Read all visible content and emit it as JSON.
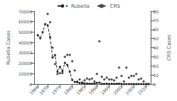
{
  "chart_data": {
    "type": "line",
    "series": [
      {
        "name": "Rubella",
        "type": "line",
        "axis": "y",
        "color": "#222222",
        "marker": "circle",
        "line_style": "dashed",
        "x": [
          1966,
          1967,
          1968,
          1969,
          1970,
          1971,
          1972,
          1973,
          1974,
          1975,
          1976,
          1977,
          1978,
          1979,
          1980,
          1981,
          1982,
          1983,
          1984,
          1985,
          1986,
          1987,
          1988,
          1989,
          1990,
          1991,
          1992,
          1993,
          1994,
          1995,
          1996,
          1997,
          1998,
          1999,
          2000,
          2001,
          2002,
          2003,
          2004,
          2005,
          2006,
          2007,
          2008,
          2009,
          2010,
          2011
        ],
        "values": [
          46975,
          44000,
          50000,
          57686,
          56552,
          45086,
          25507,
          27804,
          11917,
          16652,
          12491,
          20395,
          18269,
          11795,
          3904,
          2077,
          2325,
          970,
          745,
          630,
          551,
          306,
          225,
          396,
          1125,
          1401,
          160,
          192,
          227,
          128,
          238,
          181,
          345,
          267,
          176,
          23,
          18,
          7,
          10,
          11,
          11,
          12,
          16,
          3,
          5,
          4
        ]
      },
      {
        "name": "CRS",
        "type": "scatter",
        "axis": "y2",
        "color": "#222222",
        "marker": "diamond",
        "x": [
          1970,
          1971,
          1972,
          1973,
          1974,
          1975,
          1976,
          1977,
          1978,
          1979,
          1980,
          1981,
          1982,
          1983,
          1984,
          1985,
          1986,
          1987,
          1988,
          1989,
          1990,
          1991,
          1992,
          1993,
          1994,
          1995,
          1996,
          1997,
          1998,
          1999,
          2000,
          2001,
          2002,
          2003,
          2004,
          2005,
          2006,
          2007,
          2008,
          2009,
          2010,
          2011
        ],
        "values": [
          77,
          68,
          40,
          22,
          11,
          12,
          12,
          30,
          32,
          32,
          25,
          15,
          2,
          5,
          2,
          4,
          6,
          5,
          6,
          3,
          11,
          47,
          8,
          5,
          7,
          5,
          5,
          4,
          7,
          18,
          9,
          3,
          18,
          7,
          9,
          9,
          11,
          5,
          6,
          3,
          0,
          0
        ]
      }
    ],
    "xlim": [
      1964.5,
      2012
    ],
    "xticks": [
      1966,
      1970,
      1975,
      1980,
      1985,
      1990,
      1995,
      2000,
      2005,
      2010
    ],
    "ylim": [
      0,
      70000
    ],
    "yticks": [
      0,
      10000,
      20000,
      30000,
      40000,
      50000,
      60000,
      70000
    ],
    "y2lim": [
      0,
      80
    ],
    "y2ticks": [
      0,
      10,
      20,
      30,
      40,
      50,
      60,
      70,
      80
    ],
    "ylabel": "Rubella Cases",
    "y2label": "CRS Cases",
    "legend": "top",
    "grid": false
  }
}
